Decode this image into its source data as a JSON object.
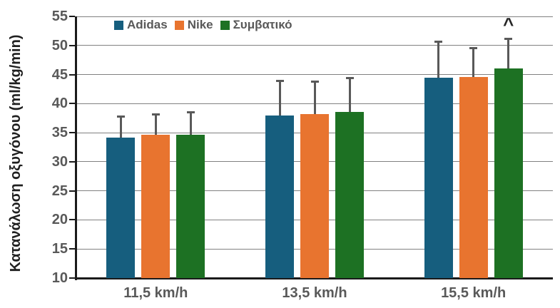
{
  "chart_data": {
    "type": "bar",
    "title": "",
    "ylabel": "Κατανάλωση οξυγόνου (ml/kg/min)",
    "xlabel": "",
    "categories": [
      "11,5 km/h",
      "13,5 km/h",
      "15,5 km/h"
    ],
    "series": [
      {
        "name": "Adidas",
        "color": "#165E7E",
        "values": [
          34.2,
          38.0,
          44.4
        ],
        "error_plus": [
          3.6,
          5.9,
          6.2
        ]
      },
      {
        "name": "Nike",
        "color": "#E8742F",
        "values": [
          34.6,
          38.2,
          44.6
        ],
        "error_plus": [
          3.5,
          5.6,
          5.0
        ]
      },
      {
        "name": "Συμβατικό",
        "color": "#1D7123",
        "values": [
          34.6,
          38.6,
          46.1
        ],
        "error_plus": [
          3.9,
          5.8,
          5.0
        ]
      }
    ],
    "ylim": [
      10,
      55
    ],
    "ytick_step": 5,
    "grid": true,
    "legend_position": "top-inside",
    "annotation": {
      "text": "^",
      "category_index": 2,
      "series_index": 2
    }
  },
  "style": {
    "background": "#FFFFFF",
    "gridline_color": "#818181",
    "axis_color": "#1A1A1A",
    "error_bar_color": "#595959",
    "tick_label_color": "#595959",
    "category_label_color": "#595959",
    "legend_text_color": "#595959",
    "ytitle_color": "#1F1F1F",
    "annotation_color": "#262626"
  }
}
